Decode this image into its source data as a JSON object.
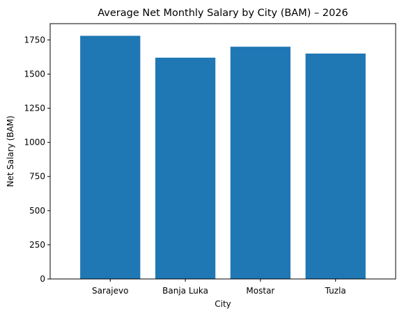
{
  "chart_data": {
    "type": "bar",
    "title": "Average Net Monthly Salary by City (BAM) – 2026",
    "xlabel": "City",
    "ylabel": "Net Salary (BAM)",
    "categories": [
      "Sarajevo",
      "Banja Luka",
      "Mostar",
      "Tuzla"
    ],
    "values": [
      1780,
      1620,
      1700,
      1650
    ],
    "ylim": [
      0,
      1869
    ],
    "yticks": [
      0,
      250,
      500,
      750,
      1000,
      1250,
      1500,
      1750
    ],
    "grid": false,
    "legend": "none",
    "bar_color": "#1f77b4"
  }
}
